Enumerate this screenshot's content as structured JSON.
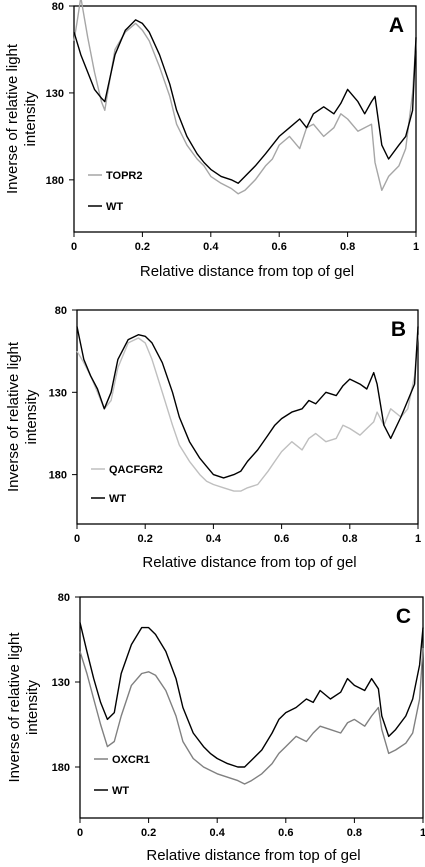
{
  "chart_data": [
    {
      "type": "line",
      "panel_label": "A",
      "xlabel": "Relative distance from top of gel",
      "ylabel_lines": [
        "Inverse of relative light",
        "intensity"
      ],
      "xlim": [
        0,
        1
      ],
      "ylim": [
        80,
        210
      ],
      "y_inverted": true,
      "x_ticks": [
        "0",
        "0.2",
        "0.4",
        "0.6",
        "0.8",
        "1"
      ],
      "y_ticks": [
        "80",
        "130",
        "180"
      ],
      "legend_position": "bottom-left",
      "series": [
        {
          "name": "TOPR2",
          "color": "#a6a6a6",
          "x": [
            0,
            0.01,
            0.02,
            0.04,
            0.06,
            0.08,
            0.09,
            0.1,
            0.12,
            0.15,
            0.18,
            0.2,
            0.22,
            0.25,
            0.28,
            0.3,
            0.33,
            0.36,
            0.38,
            0.4,
            0.43,
            0.46,
            0.48,
            0.5,
            0.53,
            0.56,
            0.58,
            0.6,
            0.63,
            0.66,
            0.68,
            0.7,
            0.73,
            0.76,
            0.78,
            0.8,
            0.83,
            0.85,
            0.87,
            0.88,
            0.9,
            0.92,
            0.95,
            0.97,
            0.99,
            1
          ],
          "y": [
            100,
            88,
            75,
            98,
            118,
            135,
            140,
            128,
            105,
            95,
            90,
            94,
            100,
            115,
            132,
            148,
            160,
            168,
            172,
            178,
            182,
            185,
            188,
            186,
            180,
            172,
            168,
            160,
            155,
            162,
            150,
            148,
            155,
            150,
            142,
            145,
            152,
            150,
            148,
            170,
            186,
            178,
            172,
            162,
            130,
            100
          ]
        },
        {
          "name": "WT",
          "color": "#000000",
          "x": [
            0,
            0.02,
            0.04,
            0.06,
            0.08,
            0.09,
            0.1,
            0.12,
            0.15,
            0.18,
            0.2,
            0.22,
            0.25,
            0.28,
            0.3,
            0.33,
            0.36,
            0.38,
            0.4,
            0.43,
            0.46,
            0.48,
            0.5,
            0.53,
            0.56,
            0.58,
            0.6,
            0.63,
            0.66,
            0.68,
            0.7,
            0.73,
            0.76,
            0.78,
            0.8,
            0.83,
            0.85,
            0.87,
            0.88,
            0.9,
            0.92,
            0.95,
            0.97,
            0.99,
            1
          ],
          "y": [
            95,
            108,
            118,
            128,
            133,
            135,
            126,
            108,
            94,
            88,
            90,
            95,
            108,
            125,
            140,
            155,
            165,
            170,
            174,
            178,
            180,
            182,
            178,
            172,
            165,
            160,
            155,
            150,
            145,
            150,
            142,
            138,
            142,
            136,
            128,
            135,
            142,
            135,
            132,
            160,
            168,
            160,
            155,
            140,
            98
          ]
        }
      ]
    },
    {
      "type": "line",
      "panel_label": "B",
      "xlabel": "Relative distance from top of gel",
      "ylabel_lines": [
        "Inverse of relative light",
        "intensity"
      ],
      "xlim": [
        0,
        1
      ],
      "ylim": [
        80,
        210
      ],
      "y_inverted": true,
      "x_ticks": [
        "0",
        "0.2",
        "0.4",
        "0.6",
        "0.8",
        "1"
      ],
      "y_ticks": [
        "80",
        "130",
        "180"
      ],
      "legend_position": "bottom-left",
      "series": [
        {
          "name": "QACFGR2",
          "color": "#bfbfbf",
          "x": [
            0,
            0.02,
            0.04,
            0.06,
            0.08,
            0.1,
            0.12,
            0.15,
            0.18,
            0.2,
            0.22,
            0.25,
            0.28,
            0.3,
            0.33,
            0.36,
            0.38,
            0.4,
            0.43,
            0.46,
            0.48,
            0.5,
            0.53,
            0.56,
            0.58,
            0.6,
            0.63,
            0.66,
            0.68,
            0.7,
            0.73,
            0.76,
            0.78,
            0.8,
            0.83,
            0.85,
            0.87,
            0.88,
            0.9,
            0.92,
            0.95,
            0.97,
            0.99,
            1
          ],
          "y": [
            105,
            112,
            120,
            130,
            140,
            135,
            115,
            100,
            97,
            100,
            110,
            130,
            150,
            162,
            172,
            180,
            184,
            186,
            188,
            190,
            190,
            188,
            186,
            178,
            172,
            166,
            160,
            165,
            158,
            155,
            160,
            158,
            150,
            152,
            156,
            152,
            148,
            142,
            150,
            140,
            145,
            140,
            120,
            95
          ]
        },
        {
          "name": "WT",
          "color": "#000000",
          "x": [
            0,
            0.02,
            0.04,
            0.06,
            0.08,
            0.1,
            0.12,
            0.15,
            0.18,
            0.2,
            0.22,
            0.25,
            0.28,
            0.3,
            0.33,
            0.36,
            0.38,
            0.4,
            0.43,
            0.46,
            0.48,
            0.5,
            0.53,
            0.56,
            0.58,
            0.6,
            0.63,
            0.66,
            0.68,
            0.7,
            0.73,
            0.76,
            0.78,
            0.8,
            0.83,
            0.85,
            0.87,
            0.88,
            0.9,
            0.92,
            0.95,
            0.97,
            0.99,
            1
          ],
          "y": [
            90,
            110,
            120,
            128,
            140,
            130,
            110,
            98,
            95,
            96,
            100,
            112,
            130,
            145,
            160,
            170,
            175,
            180,
            182,
            180,
            178,
            172,
            165,
            156,
            150,
            146,
            142,
            140,
            135,
            137,
            130,
            132,
            126,
            122,
            125,
            128,
            118,
            125,
            150,
            158,
            145,
            135,
            125,
            90
          ]
        }
      ]
    },
    {
      "type": "line",
      "panel_label": "C",
      "xlabel": "Relative distance from top of gel",
      "ylabel_lines": [
        "Inverse of relative light",
        "intensity"
      ],
      "xlim": [
        0,
        1
      ],
      "ylim": [
        80,
        210
      ],
      "y_inverted": true,
      "x_ticks": [
        "0",
        "0.2",
        "0.4",
        "0.6",
        "0.8",
        "1"
      ],
      "y_ticks": [
        "80",
        "130",
        "180"
      ],
      "legend_position": "bottom-left",
      "series": [
        {
          "name": "OXCR1",
          "color": "#808080",
          "x": [
            0,
            0.02,
            0.04,
            0.06,
            0.08,
            0.1,
            0.12,
            0.15,
            0.18,
            0.2,
            0.22,
            0.25,
            0.28,
            0.3,
            0.33,
            0.36,
            0.38,
            0.4,
            0.43,
            0.46,
            0.48,
            0.5,
            0.53,
            0.56,
            0.58,
            0.6,
            0.63,
            0.66,
            0.68,
            0.7,
            0.73,
            0.76,
            0.78,
            0.8,
            0.83,
            0.85,
            0.87,
            0.88,
            0.9,
            0.92,
            0.95,
            0.97,
            0.99,
            1
          ],
          "y": [
            112,
            125,
            140,
            155,
            168,
            165,
            150,
            132,
            125,
            124,
            126,
            135,
            150,
            165,
            175,
            180,
            182,
            184,
            186,
            188,
            190,
            188,
            184,
            178,
            172,
            168,
            162,
            165,
            160,
            156,
            158,
            160,
            154,
            152,
            156,
            150,
            145,
            158,
            172,
            170,
            166,
            160,
            140,
            110
          ]
        },
        {
          "name": "WT",
          "color": "#000000",
          "x": [
            0,
            0.02,
            0.04,
            0.06,
            0.08,
            0.1,
            0.12,
            0.15,
            0.18,
            0.2,
            0.22,
            0.25,
            0.28,
            0.3,
            0.33,
            0.36,
            0.38,
            0.4,
            0.43,
            0.46,
            0.48,
            0.5,
            0.53,
            0.56,
            0.58,
            0.6,
            0.63,
            0.66,
            0.68,
            0.7,
            0.73,
            0.76,
            0.78,
            0.8,
            0.83,
            0.85,
            0.87,
            0.88,
            0.9,
            0.92,
            0.95,
            0.97,
            0.99,
            1
          ],
          "y": [
            95,
            112,
            128,
            142,
            152,
            148,
            125,
            108,
            98,
            98,
            102,
            112,
            128,
            145,
            160,
            168,
            172,
            175,
            178,
            180,
            180,
            176,
            170,
            160,
            152,
            148,
            145,
            140,
            142,
            135,
            140,
            136,
            128,
            132,
            135,
            128,
            134,
            150,
            162,
            158,
            150,
            140,
            120,
            98
          ]
        }
      ]
    }
  ]
}
